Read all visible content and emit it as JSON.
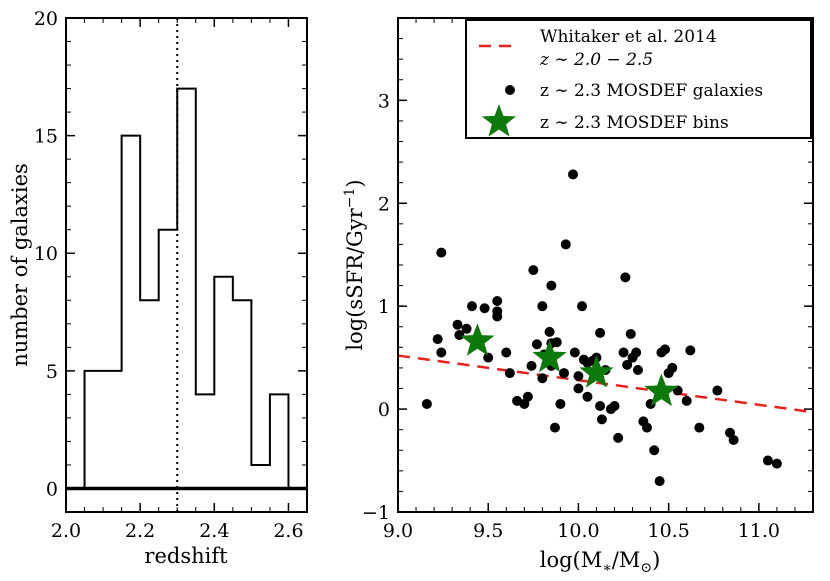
{
  "chart_data": [
    {
      "type": "histogram",
      "title": "",
      "xlabel": "redshift",
      "ylabel": "number of galaxies",
      "xlim": [
        2.0,
        2.65
      ],
      "ylim": [
        -1,
        20
      ],
      "xticks": [
        2.0,
        2.2,
        2.4,
        2.6
      ],
      "xtick_labels": [
        "2.0",
        "2.2",
        "2.4",
        "2.6"
      ],
      "yticks": [
        0,
        5,
        10,
        15,
        20
      ],
      "ytick_labels": [
        "0",
        "5",
        "10",
        "15",
        "20"
      ],
      "bin_edges": [
        2.05,
        2.15,
        2.2,
        2.25,
        2.3,
        2.35,
        2.4,
        2.45,
        2.5,
        2.55,
        2.6
      ],
      "counts": [
        5,
        15,
        8,
        11,
        17,
        4,
        9,
        8,
        1,
        4
      ],
      "vline": 2.3,
      "hline": 0
    },
    {
      "type": "scatter",
      "title": "",
      "xlabel": "log(M*/M⊙)",
      "ylabel": "log(sSFR/Gyr⁻¹)",
      "xlim": [
        9.0,
        11.3
      ],
      "ylim": [
        -1,
        3.8
      ],
      "xticks": [
        9.0,
        9.5,
        10.0,
        10.5,
        11.0
      ],
      "xtick_labels": [
        "9.0",
        "9.5",
        "10.0",
        "10.5",
        "11.0"
      ],
      "yticks": [
        -1,
        0,
        1,
        2,
        3
      ],
      "ytick_labels": [
        "−1",
        "0",
        "1",
        "2",
        "3"
      ],
      "legend_position": "top-right",
      "series": [
        {
          "name": "Whitaker et al. 2014 z ∼ 2.0 − 2.5",
          "kind": "dashed-line",
          "color": "#e8221b",
          "x": [
            9.0,
            11.3
          ],
          "y": [
            0.52,
            -0.03
          ]
        },
        {
          "name": "z ∼ 2.3 MOSDEF galaxies",
          "kind": "points",
          "color": "#000000",
          "points": [
            [
              9.16,
              0.05
            ],
            [
              9.22,
              0.68
            ],
            [
              9.24,
              0.55
            ],
            [
              9.24,
              1.52
            ],
            [
              9.33,
              0.82
            ],
            [
              9.34,
              0.72
            ],
            [
              9.38,
              0.78
            ],
            [
              9.41,
              1.0
            ],
            [
              9.48,
              0.98
            ],
            [
              9.5,
              0.5
            ],
            [
              9.55,
              1.05
            ],
            [
              9.55,
              0.95
            ],
            [
              9.55,
              0.9
            ],
            [
              9.6,
              0.55
            ],
            [
              9.62,
              0.35
            ],
            [
              9.66,
              0.08
            ],
            [
              9.7,
              0.05
            ],
            [
              9.72,
              0.12
            ],
            [
              9.74,
              0.42
            ],
            [
              9.75,
              1.35
            ],
            [
              9.77,
              0.63
            ],
            [
              9.8,
              1.0
            ],
            [
              9.8,
              0.3
            ],
            [
              9.81,
              0.53
            ],
            [
              9.84,
              0.75
            ],
            [
              9.85,
              0.64
            ],
            [
              9.85,
              1.2
            ],
            [
              9.85,
              0.42
            ],
            [
              9.87,
              -0.18
            ],
            [
              9.88,
              0.65
            ],
            [
              9.9,
              0.05
            ],
            [
              9.92,
              0.35
            ],
            [
              9.93,
              1.6
            ],
            [
              9.97,
              2.28
            ],
            [
              9.98,
              0.55
            ],
            [
              10.0,
              0.32
            ],
            [
              10.0,
              0.2
            ],
            [
              10.02,
              1.0
            ],
            [
              10.03,
              0.48
            ],
            [
              10.05,
              0.45
            ],
            [
              10.05,
              0.12
            ],
            [
              10.08,
              0.47
            ],
            [
              10.1,
              0.5
            ],
            [
              10.12,
              0.03
            ],
            [
              10.12,
              0.74
            ],
            [
              10.13,
              -0.1
            ],
            [
              10.15,
              0.38
            ],
            [
              10.18,
              0.0
            ],
            [
              10.2,
              0.03
            ],
            [
              10.22,
              -0.28
            ],
            [
              10.25,
              0.55
            ],
            [
              10.26,
              1.28
            ],
            [
              10.27,
              0.43
            ],
            [
              10.29,
              0.73
            ],
            [
              10.3,
              0.5
            ],
            [
              10.32,
              0.55
            ],
            [
              10.33,
              0.38
            ],
            [
              10.36,
              -0.12
            ],
            [
              10.38,
              -0.18
            ],
            [
              10.4,
              0.05
            ],
            [
              10.42,
              -0.4
            ],
            [
              10.45,
              -0.7
            ],
            [
              10.46,
              0.55
            ],
            [
              10.48,
              0.58
            ],
            [
              10.5,
              0.35
            ],
            [
              10.52,
              0.4
            ],
            [
              10.55,
              0.18
            ],
            [
              10.6,
              0.08
            ],
            [
              10.62,
              0.57
            ],
            [
              10.67,
              -0.18
            ],
            [
              10.77,
              0.18
            ],
            [
              10.84,
              -0.23
            ],
            [
              10.86,
              -0.3
            ],
            [
              11.05,
              -0.5
            ],
            [
              11.1,
              -0.53
            ]
          ]
        },
        {
          "name": "z ∼ 2.3 MOSDEF bins",
          "kind": "stars",
          "color": "#0b7a0b",
          "points": [
            [
              9.44,
              0.66
            ],
            [
              9.84,
              0.5
            ],
            [
              10.1,
              0.35
            ],
            [
              10.46,
              0.17
            ]
          ]
        }
      ]
    }
  ],
  "legend": {
    "entry_1_line1": "Whitaker et al. 2014",
    "entry_1_line2": "z ∼ 2.0 − 2.5",
    "entry_2": "z ∼ 2.3 MOSDEF galaxies",
    "entry_3": "z ∼ 2.3 MOSDEF bins"
  }
}
